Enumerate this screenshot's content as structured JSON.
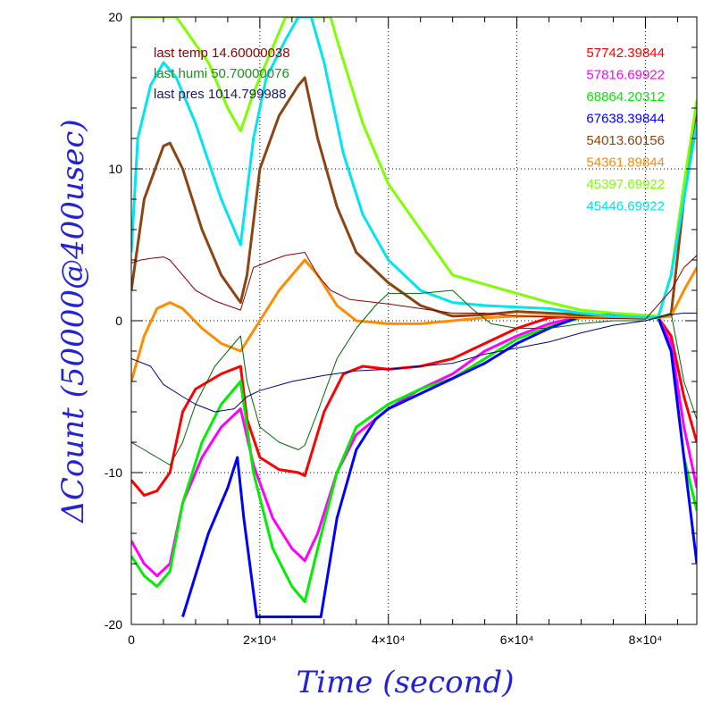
{
  "chart_data": {
    "type": "line",
    "xlabel": "Time (second)",
    "ylabel": "ΔCount (50000@400usec)",
    "xlim": [
      0,
      88000
    ],
    "ylim": [
      -20,
      20
    ],
    "grid": true,
    "x_ticks": [
      {
        "value": 0,
        "label": "0"
      },
      {
        "value": 20000,
        "label": "2×10⁴"
      },
      {
        "value": 40000,
        "label": "4×10⁴"
      },
      {
        "value": 60000,
        "label": "6×10⁴"
      },
      {
        "value": 80000,
        "label": "8×10⁴"
      }
    ],
    "y_ticks": [
      {
        "value": -20,
        "label": "-20"
      },
      {
        "value": -10,
        "label": "-10"
      },
      {
        "value": 0,
        "label": "0"
      },
      {
        "value": 10,
        "label": "10"
      },
      {
        "value": 20,
        "label": "20"
      }
    ],
    "env_labels": [
      {
        "text": "last temp 14.60000038",
        "color": "#8b0000"
      },
      {
        "text": "last humi 50.70000076",
        "color": "#228b22"
      },
      {
        "text": "last pres 1014.799988",
        "color": "#191970"
      }
    ],
    "series": [
      {
        "name": "57742.39844",
        "color": "#ff0000",
        "width": 3,
        "points": [
          [
            0,
            -10.5
          ],
          [
            2000,
            -11.5
          ],
          [
            4000,
            -11.2
          ],
          [
            6000,
            -10
          ],
          [
            8000,
            -6
          ],
          [
            10000,
            -4.5
          ],
          [
            14000,
            -3.5
          ],
          [
            17000,
            -3
          ],
          [
            18000,
            -6.5
          ],
          [
            20000,
            -9
          ],
          [
            23000,
            -9.8
          ],
          [
            26000,
            -10
          ],
          [
            27000,
            -10.2
          ],
          [
            30000,
            -6
          ],
          [
            33000,
            -3.5
          ],
          [
            36000,
            -3
          ],
          [
            40000,
            -3.2
          ],
          [
            45000,
            -3
          ],
          [
            50000,
            -2.5
          ],
          [
            55000,
            -1.5
          ],
          [
            60000,
            -0.5
          ],
          [
            65000,
            0.2
          ],
          [
            70000,
            0.3
          ],
          [
            75000,
            0.3
          ],
          [
            82000,
            0.2
          ],
          [
            84000,
            -1
          ],
          [
            86000,
            -5
          ],
          [
            88000,
            -8
          ]
        ]
      },
      {
        "name": "57816.69922",
        "color": "#ff00ff",
        "width": 3,
        "points": [
          [
            0,
            -14.5
          ],
          [
            2000,
            -16
          ],
          [
            4000,
            -16.8
          ],
          [
            6000,
            -16
          ],
          [
            8000,
            -12
          ],
          [
            11000,
            -9
          ],
          [
            14000,
            -7
          ],
          [
            17000,
            -5.8
          ],
          [
            19000,
            -9.5
          ],
          [
            22000,
            -13
          ],
          [
            25000,
            -15
          ],
          [
            27000,
            -15.8
          ],
          [
            29000,
            -14
          ],
          [
            32000,
            -10
          ],
          [
            35000,
            -7.5
          ],
          [
            40000,
            -5.8
          ],
          [
            45000,
            -4.5
          ],
          [
            50000,
            -3.5
          ],
          [
            55000,
            -2
          ],
          [
            60000,
            -1
          ],
          [
            65000,
            -0.2
          ],
          [
            70000,
            0.3
          ],
          [
            75000,
            0.3
          ],
          [
            82000,
            0.2
          ],
          [
            84000,
            -1.5
          ],
          [
            86000,
            -7
          ],
          [
            88000,
            -11
          ]
        ]
      },
      {
        "name": "68864.20312",
        "color": "#00ee00",
        "width": 3,
        "points": [
          [
            0,
            -15.5
          ],
          [
            2000,
            -16.8
          ],
          [
            4000,
            -17.5
          ],
          [
            6000,
            -16.5
          ],
          [
            8000,
            -12
          ],
          [
            11000,
            -8
          ],
          [
            14000,
            -5.5
          ],
          [
            17000,
            -4
          ],
          [
            19000,
            -10
          ],
          [
            22000,
            -15
          ],
          [
            25000,
            -17.5
          ],
          [
            27000,
            -18.5
          ],
          [
            29000,
            -15
          ],
          [
            32000,
            -10
          ],
          [
            35000,
            -7
          ],
          [
            40000,
            -5.5
          ],
          [
            45000,
            -4.5
          ],
          [
            50000,
            -3.8
          ],
          [
            55000,
            -2.5
          ],
          [
            60000,
            -1.2
          ],
          [
            65000,
            -0.4
          ],
          [
            70000,
            0.2
          ],
          [
            75000,
            0.3
          ],
          [
            82000,
            0.2
          ],
          [
            84000,
            -2
          ],
          [
            86000,
            -9
          ],
          [
            88000,
            -12.5
          ]
        ]
      },
      {
        "name": "67638.39844",
        "color": "#0000ff",
        "width": 3,
        "points": [
          [
            8000,
            -19.5
          ],
          [
            12000,
            -14
          ],
          [
            15000,
            -11
          ],
          [
            16500,
            -9
          ],
          [
            17500,
            -13
          ],
          [
            19500,
            -19.5
          ],
          [
            29500,
            -19.5
          ],
          [
            32000,
            -13
          ],
          [
            35000,
            -8.5
          ],
          [
            38000,
            -6.5
          ],
          [
            40000,
            -5.8
          ],
          [
            45000,
            -4.8
          ],
          [
            50000,
            -3.8
          ],
          [
            55000,
            -2.8
          ],
          [
            60000,
            -1.5
          ],
          [
            65000,
            -0.5
          ],
          [
            70000,
            0.3
          ],
          [
            75000,
            0.4
          ],
          [
            82000,
            0.2
          ],
          [
            84000,
            -2
          ],
          [
            86000,
            -9
          ],
          [
            88000,
            -16
          ]
        ]
      },
      {
        "name": "54013.60156",
        "color": "#8b4513",
        "width": 3,
        "points": [
          [
            0,
            2
          ],
          [
            2000,
            8
          ],
          [
            5000,
            11.5
          ],
          [
            6000,
            11.7
          ],
          [
            8000,
            10
          ],
          [
            11000,
            6
          ],
          [
            14000,
            3
          ],
          [
            17000,
            1.2
          ],
          [
            18000,
            3
          ],
          [
            20000,
            10
          ],
          [
            23000,
            13.5
          ],
          [
            26000,
            15.5
          ],
          [
            27000,
            16
          ],
          [
            29000,
            12
          ],
          [
            32000,
            7.5
          ],
          [
            35000,
            4.5
          ],
          [
            40000,
            2.5
          ],
          [
            45000,
            1
          ],
          [
            50000,
            0.3
          ],
          [
            55000,
            0.4
          ],
          [
            60000,
            0.6
          ],
          [
            65000,
            0.5
          ],
          [
            70000,
            0.4
          ],
          [
            75000,
            0.3
          ],
          [
            82000,
            0.2
          ],
          [
            84000,
            0.4
          ],
          [
            86000,
            8
          ],
          [
            88000,
            14
          ]
        ]
      },
      {
        "name": "54361.89844",
        "color": "#ff8c00",
        "width": 3,
        "points": [
          [
            0,
            -4
          ],
          [
            2000,
            -1
          ],
          [
            4000,
            0.8
          ],
          [
            6000,
            1.2
          ],
          [
            8000,
            0.8
          ],
          [
            11000,
            -0.5
          ],
          [
            14000,
            -1.5
          ],
          [
            17000,
            -2
          ],
          [
            20000,
            0
          ],
          [
            23000,
            2
          ],
          [
            26000,
            3.5
          ],
          [
            27000,
            4
          ],
          [
            29000,
            3
          ],
          [
            32000,
            1
          ],
          [
            35000,
            0
          ],
          [
            40000,
            -0.2
          ],
          [
            45000,
            -0.2
          ],
          [
            50000,
            0
          ],
          [
            55000,
            0.2
          ],
          [
            60000,
            0.3
          ],
          [
            65000,
            0.3
          ],
          [
            70000,
            0.2
          ],
          [
            75000,
            0.2
          ],
          [
            82000,
            0.2
          ],
          [
            84000,
            0.3
          ],
          [
            86000,
            2
          ],
          [
            88000,
            3.5
          ]
        ]
      },
      {
        "name": "45397.69922",
        "color": "#7fff00",
        "width": 3,
        "points": [
          [
            0,
            20
          ],
          [
            2000,
            20
          ],
          [
            3000,
            20
          ],
          [
            7000,
            20
          ],
          [
            12000,
            17
          ],
          [
            15000,
            14
          ],
          [
            17000,
            12.5
          ],
          [
            19000,
            15
          ],
          [
            22000,
            18
          ],
          [
            24000,
            20
          ],
          [
            31000,
            20
          ],
          [
            32000,
            18.5
          ],
          [
            36000,
            13
          ],
          [
            40000,
            9
          ],
          [
            45000,
            6
          ],
          [
            50000,
            3
          ],
          [
            55000,
            2.4
          ],
          [
            60000,
            1.8
          ],
          [
            65000,
            1.2
          ],
          [
            70000,
            0.7
          ],
          [
            75000,
            0.5
          ],
          [
            82000,
            0.3
          ],
          [
            84000,
            3
          ],
          [
            86000,
            9
          ],
          [
            88000,
            14.5
          ]
        ]
      },
      {
        "name": "45446.69922",
        "color": "#00e5ee",
        "width": 3,
        "points": [
          [
            0,
            4.5
          ],
          [
            1000,
            12
          ],
          [
            3000,
            15.5
          ],
          [
            5000,
            17
          ],
          [
            7000,
            16
          ],
          [
            10000,
            13
          ],
          [
            14000,
            8
          ],
          [
            17000,
            5
          ],
          [
            19000,
            12
          ],
          [
            21000,
            16
          ],
          [
            24000,
            18.5
          ],
          [
            26000,
            20
          ],
          [
            28000,
            20
          ],
          [
            30000,
            17
          ],
          [
            33000,
            11
          ],
          [
            36000,
            7
          ],
          [
            40000,
            4
          ],
          [
            45000,
            2
          ],
          [
            50000,
            1.2
          ],
          [
            55000,
            1
          ],
          [
            60000,
            0.9
          ],
          [
            65000,
            0.8
          ],
          [
            70000,
            0.5
          ],
          [
            75000,
            0.3
          ],
          [
            82000,
            0.2
          ],
          [
            84000,
            3
          ],
          [
            86000,
            8
          ],
          [
            88000,
            13
          ]
        ]
      },
      {
        "name": "",
        "color": "#8b0000",
        "width": 1,
        "points": [
          [
            0,
            3.8
          ],
          [
            1500,
            4
          ],
          [
            3000,
            4.1
          ],
          [
            5000,
            4.2
          ],
          [
            6000,
            4
          ],
          [
            8000,
            3
          ],
          [
            10000,
            2
          ],
          [
            13000,
            1.3
          ],
          [
            17000,
            0.7
          ],
          [
            19000,
            3.5
          ],
          [
            22000,
            4
          ],
          [
            24000,
            4.3
          ],
          [
            27000,
            4.5
          ],
          [
            29000,
            3
          ],
          [
            31000,
            2
          ],
          [
            34000,
            1.4
          ],
          [
            40000,
            1.1
          ],
          [
            45000,
            0.8
          ],
          [
            50000,
            0.5
          ],
          [
            55000,
            0.5
          ],
          [
            60000,
            0.3
          ],
          [
            70000,
            0.2
          ],
          [
            80000,
            0.1
          ],
          [
            84000,
            2
          ],
          [
            86000,
            3.5
          ],
          [
            88000,
            4.3
          ]
        ]
      },
      {
        "name": "",
        "color": "#006400",
        "width": 1,
        "points": [
          [
            0,
            -8
          ],
          [
            2000,
            -8.5
          ],
          [
            4000,
            -9
          ],
          [
            6000,
            -9.5
          ],
          [
            8000,
            -8
          ],
          [
            10000,
            -5.5
          ],
          [
            13000,
            -3
          ],
          [
            16000,
            -1.5
          ],
          [
            17000,
            -1
          ],
          [
            18000,
            -4
          ],
          [
            20000,
            -7
          ],
          [
            23000,
            -8
          ],
          [
            26000,
            -8.5
          ],
          [
            27000,
            -8.2
          ],
          [
            29000,
            -6
          ],
          [
            32000,
            -2.5
          ],
          [
            35000,
            -0.5
          ],
          [
            38000,
            1
          ],
          [
            40000,
            1.8
          ],
          [
            45000,
            1.8
          ],
          [
            50000,
            2
          ],
          [
            53000,
            0.8
          ],
          [
            56000,
            -0.2
          ],
          [
            60000,
            -0.5
          ],
          [
            65000,
            -0.5
          ],
          [
            70000,
            -0.2
          ],
          [
            75000,
            0
          ],
          [
            80000,
            0
          ],
          [
            84000,
            0.5
          ],
          [
            86000,
            -4
          ],
          [
            88000,
            -6.5
          ]
        ]
      },
      {
        "name": "",
        "color": "#000080",
        "width": 1,
        "points": [
          [
            0,
            -2.5
          ],
          [
            3000,
            -3
          ],
          [
            5000,
            -4.2
          ],
          [
            8000,
            -5
          ],
          [
            10000,
            -5.5
          ],
          [
            13000,
            -6
          ],
          [
            16000,
            -5.8
          ],
          [
            18000,
            -5
          ],
          [
            20000,
            -4.6
          ],
          [
            25000,
            -4
          ],
          [
            30000,
            -3.6
          ],
          [
            35000,
            -3.3
          ],
          [
            40000,
            -3.2
          ],
          [
            45000,
            -3
          ],
          [
            50000,
            -2.8
          ],
          [
            55000,
            -2.2
          ],
          [
            60000,
            -1.8
          ],
          [
            65000,
            -1.4
          ],
          [
            70000,
            -0.8
          ],
          [
            75000,
            -0.3
          ],
          [
            80000,
            0
          ],
          [
            84000,
            0.4
          ],
          [
            86000,
            0.5
          ],
          [
            88000,
            0.5
          ]
        ]
      }
    ]
  }
}
